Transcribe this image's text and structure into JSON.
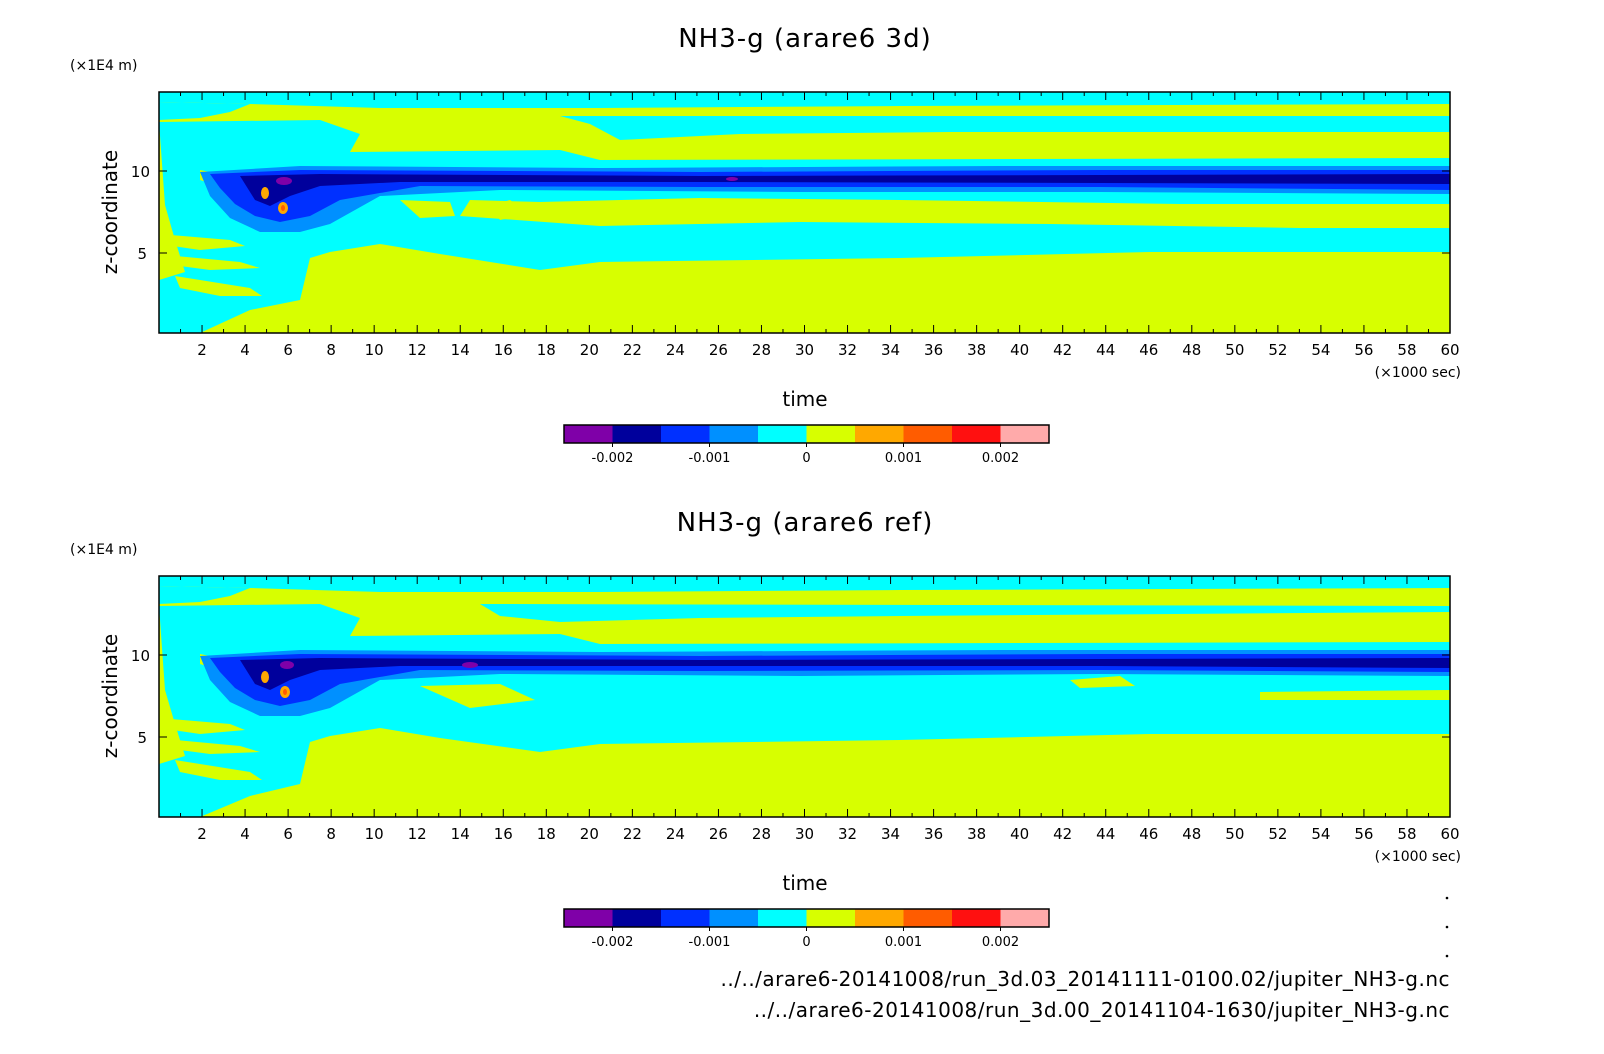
{
  "colors": {
    "levels": [
      "#7f00a8",
      "#00009c",
      "#0030ff",
      "#0090ff",
      "#00ffff",
      "#d7ff00",
      "#ffa800",
      "#ff5c00",
      "#ff1010",
      "#ffaaaa"
    ],
    "dark": "#2020a0",
    "magenta": "#cc1060"
  },
  "chart_data": [
    {
      "type": "heatmap",
      "title": "NH3-g (arare6 3d)",
      "xlabel": "time",
      "x_unit": "(×1000 sec)",
      "ylabel": "z-coordinate",
      "y_unit": "(×1E4 m)",
      "xlim": [
        0,
        60
      ],
      "ylim": [
        0,
        14.6
      ],
      "x_ticks": [
        "2",
        "4",
        "6",
        "8",
        "10",
        "12",
        "14",
        "16",
        "18",
        "20",
        "22",
        "24",
        "26",
        "28",
        "30",
        "32",
        "34",
        "36",
        "38",
        "40",
        "42",
        "44",
        "46",
        "48",
        "50",
        "52",
        "54",
        "56",
        "58",
        "60"
      ],
      "y_ticks": [
        "5",
        "10"
      ],
      "colorbar_ticks": [
        "-0.002",
        "-0.001",
        "0",
        "0.001",
        "0.002"
      ],
      "colorbar_range": [
        -0.0025,
        0.0025
      ]
    },
    {
      "type": "heatmap",
      "title": "NH3-g (arare6 ref)",
      "xlabel": "time",
      "x_unit": "(×1000 sec)",
      "ylabel": "z-coordinate",
      "y_unit": "(×1E4 m)",
      "xlim": [
        0,
        60
      ],
      "ylim": [
        0,
        14.6
      ],
      "x_ticks": [
        "2",
        "4",
        "6",
        "8",
        "10",
        "12",
        "14",
        "16",
        "18",
        "20",
        "22",
        "24",
        "26",
        "28",
        "30",
        "32",
        "34",
        "36",
        "38",
        "40",
        "42",
        "44",
        "46",
        "48",
        "50",
        "52",
        "54",
        "56",
        "58",
        "60"
      ],
      "y_ticks": [
        "5",
        "10"
      ],
      "colorbar_ticks": [
        "-0.002",
        "-0.001",
        "0",
        "0.001",
        "0.002"
      ],
      "colorbar_range": [
        -0.0025,
        0.0025
      ]
    }
  ],
  "footer": {
    "files": [
      "../../arare6-20141008/run_3d.03_20141111-0100.02/jupiter_NH3-g.nc",
      "../../arare6-20141008/run_3d.00_20141104-1630/jupiter_NH3-g.nc"
    ]
  }
}
